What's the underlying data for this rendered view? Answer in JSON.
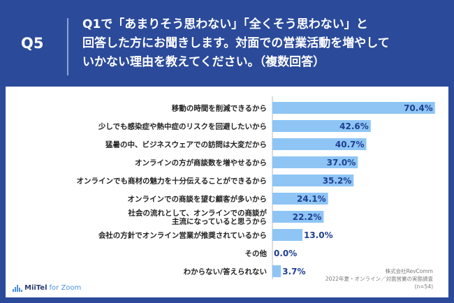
{
  "header": {
    "badge": "Q5",
    "question_lines": [
      "Q1で「あまりそう思わない」「全くそう思わない」と",
      "回答した方にお聞きします。対面での営業活動を増やして",
      "いかない理由を教えてください。（複数回答）"
    ]
  },
  "chart_data": {
    "type": "bar",
    "orientation": "horizontal",
    "unit": "%",
    "xlim": [
      0,
      72
    ],
    "categories": [
      "移動の時間を削減できるから",
      "少しでも感染症や熱中症のリスクを回避したいから",
      "猛暑の中、ビジネスウェアでの訪問は大変だから",
      "オンラインの方が商談数を増やせるから",
      "オンラインでも商材の魅力を十分伝えることができるから",
      "オンラインでの商談を望む顧客が多いから",
      "社会の流れとして、オンラインでの商談が\n主流になっていると思うから",
      "会社の方針でオンライン営業が推奨されているから",
      "その他",
      "わからない/答えられない"
    ],
    "values": [
      70.4,
      42.6,
      40.7,
      37.0,
      35.2,
      24.1,
      22.2,
      13.0,
      0.0,
      3.7
    ],
    "value_labels": [
      "70.4%",
      "42.6%",
      "40.7%",
      "37.0%",
      "35.2%",
      "24.1%",
      "22.2%",
      "13.0%",
      "0.0%",
      "3.7%"
    ],
    "bar_color": "#8ec5f5"
  },
  "footer": {
    "logo_brand": "MiiTel",
    "logo_sub": "for Zoom",
    "source_lines": [
      "株式会社RevComm",
      "2022年夏・オンライン／対面営業の実態調査",
      "(n=54)"
    ]
  }
}
